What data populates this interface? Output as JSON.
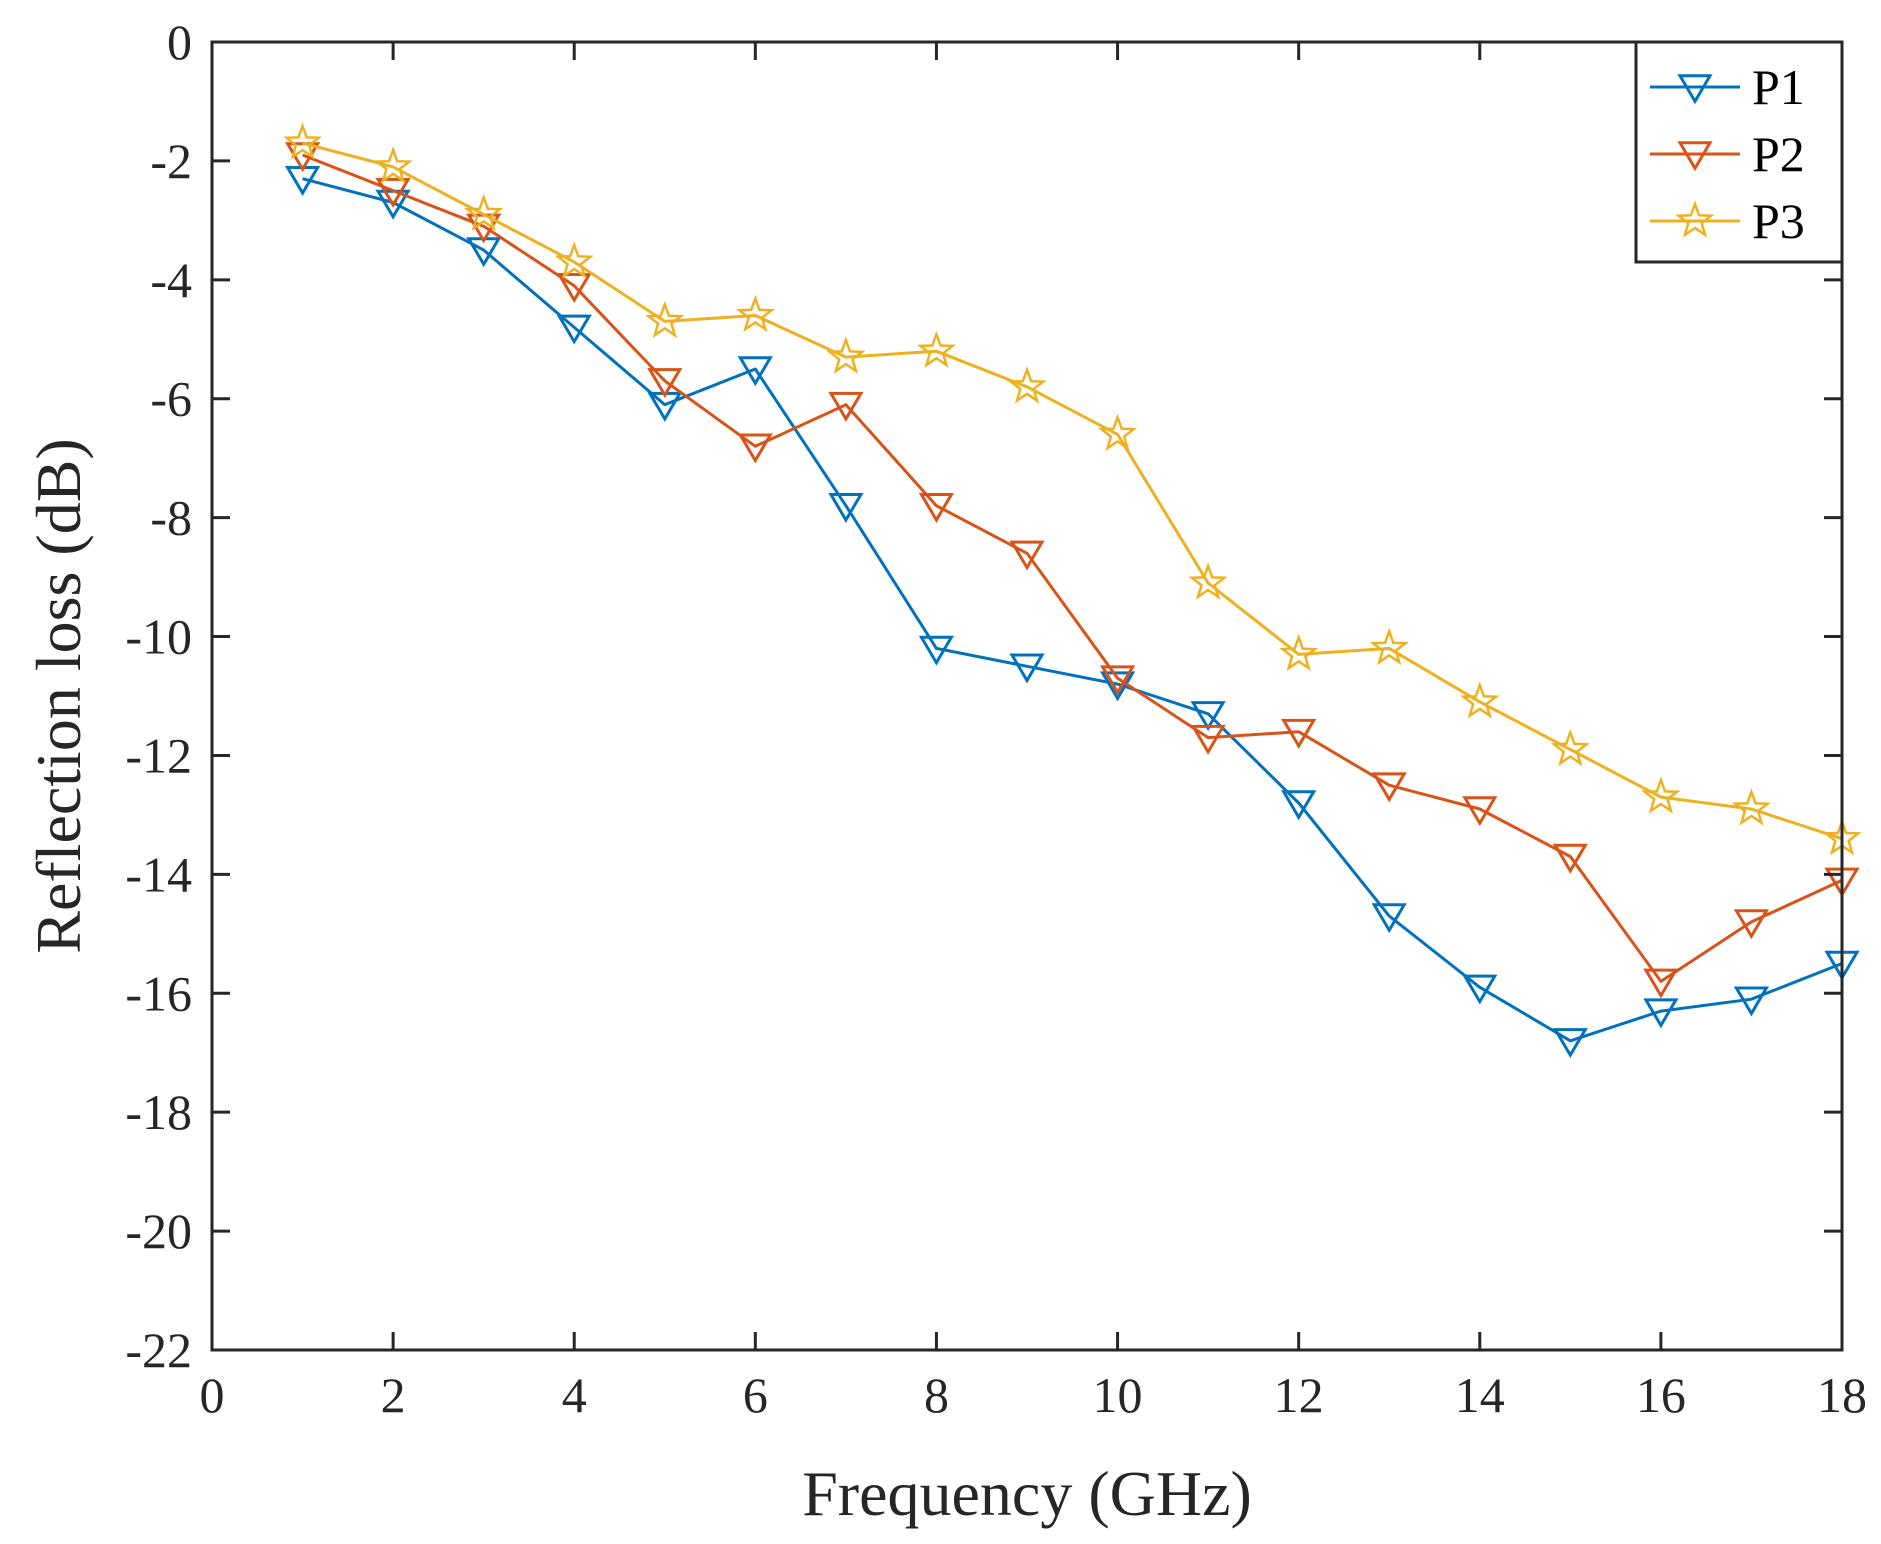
{
  "chart_data": {
    "type": "line",
    "title": "",
    "xlabel": "Frequency (GHz)",
    "ylabel": "Reflection loss (dB)",
    "xlim": [
      0,
      18
    ],
    "ylim": [
      -22,
      0
    ],
    "x_ticks": [
      0,
      2,
      4,
      6,
      8,
      10,
      12,
      14,
      16,
      18
    ],
    "y_ticks": [
      0,
      -2,
      -4,
      -6,
      -8,
      -10,
      -12,
      -14,
      -16,
      -18,
      -20,
      -22
    ],
    "x_tick_labels": [
      "0",
      "2",
      "4",
      "6",
      "8",
      "10",
      "12",
      "14",
      "16",
      "18"
    ],
    "y_tick_labels": [
      "0",
      "-2",
      "-4",
      "-6",
      "-8",
      "-10",
      "-12",
      "-14",
      "-16",
      "-18",
      "-20",
      "-22"
    ],
    "grid": false,
    "legend_position": "top-right",
    "x": [
      1,
      2,
      3,
      4,
      5,
      6,
      7,
      8,
      9,
      10,
      11,
      12,
      13,
      14,
      15,
      16,
      17,
      18
    ],
    "series": [
      {
        "name": "P1",
        "color": "#0072BD",
        "marker": "triangle-down",
        "values": [
          -2.3,
          -2.7,
          -3.5,
          -4.8,
          -6.1,
          -5.5,
          -7.8,
          -10.2,
          -10.5,
          -10.8,
          -11.3,
          -12.8,
          -14.7,
          -15.9,
          -16.8,
          -16.3,
          -16.1,
          -15.5
        ]
      },
      {
        "name": "P2",
        "color": "#D95319",
        "marker": "triangle-down",
        "values": [
          -1.9,
          -2.5,
          -3.1,
          -4.1,
          -5.7,
          -6.8,
          -6.1,
          -7.8,
          -8.6,
          -10.7,
          -11.7,
          -11.6,
          -12.5,
          -12.9,
          -13.7,
          -15.8,
          -14.8,
          -14.1
        ]
      },
      {
        "name": "P3",
        "color": "#EDB120",
        "marker": "star",
        "values": [
          -1.7,
          -2.1,
          -2.9,
          -3.7,
          -4.7,
          -4.6,
          -5.3,
          -5.2,
          -5.8,
          -6.6,
          -9.1,
          -10.3,
          -10.2,
          -11.1,
          -11.9,
          -12.7,
          -12.9,
          -13.4
        ]
      }
    ]
  }
}
